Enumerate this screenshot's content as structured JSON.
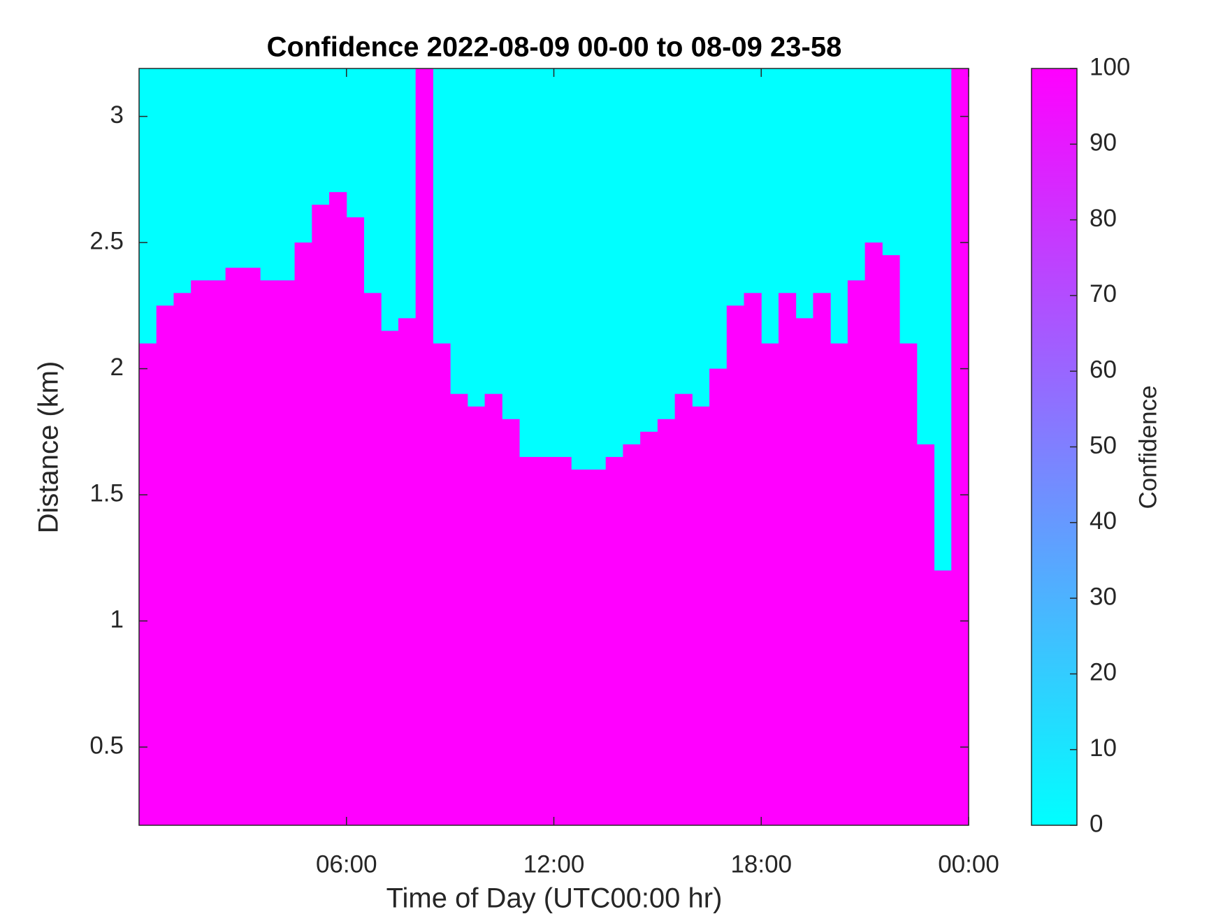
{
  "chart_data": {
    "type": "heatmap",
    "title": "Confidence 2022-08-09 00-00 to 08-09 23-58",
    "x_label": "Time of Day (UTC00:00 hr)",
    "y_label": "Distance (km)",
    "x": [
      0,
      0.5,
      1,
      1.5,
      2,
      2.5,
      3,
      3.5,
      4,
      4.5,
      5,
      5.5,
      6,
      6.5,
      7,
      7.5,
      8,
      8.5,
      9,
      9.5,
      10,
      10.5,
      11,
      11.5,
      12,
      12.5,
      13,
      13.5,
      14,
      14.5,
      15,
      15.5,
      16,
      16.5,
      17,
      17.5,
      18,
      18.5,
      19,
      19.5,
      20,
      20.5,
      21,
      21.5,
      22,
      22.5,
      23,
      23.5
    ],
    "values": [
      2.1,
      2.25,
      2.3,
      2.35,
      2.35,
      2.4,
      2.4,
      2.35,
      2.35,
      2.5,
      2.65,
      2.7,
      2.6,
      2.3,
      2.15,
      2.2,
      3.19,
      2.1,
      1.9,
      1.85,
      1.9,
      1.8,
      1.65,
      1.65,
      1.65,
      1.6,
      1.6,
      1.65,
      1.7,
      1.75,
      1.8,
      1.9,
      1.85,
      2.0,
      2.25,
      2.3,
      2.1,
      2.3,
      2.2,
      2.3,
      2.1,
      2.35,
      2.5,
      2.45,
      2.1,
      1.7,
      1.2,
      3.19
    ],
    "xlim": [
      0,
      24
    ],
    "xticks": [
      {
        "value": 6,
        "label": "06:00"
      },
      {
        "value": 12,
        "label": "12:00"
      },
      {
        "value": 18,
        "label": "18:00"
      },
      {
        "value": 24,
        "label": "00:00"
      }
    ],
    "ylim": [
      0.19,
      3.19
    ],
    "yticks": [
      0.5,
      1,
      1.5,
      2,
      2.5,
      3
    ],
    "colormap": [
      "#00ffff",
      "#ff00ff"
    ],
    "clim": [
      0,
      100
    ],
    "cticks": [
      0,
      10,
      20,
      30,
      40,
      50,
      60,
      70,
      80,
      90,
      100
    ],
    "colorbar_label": "Confidence"
  }
}
